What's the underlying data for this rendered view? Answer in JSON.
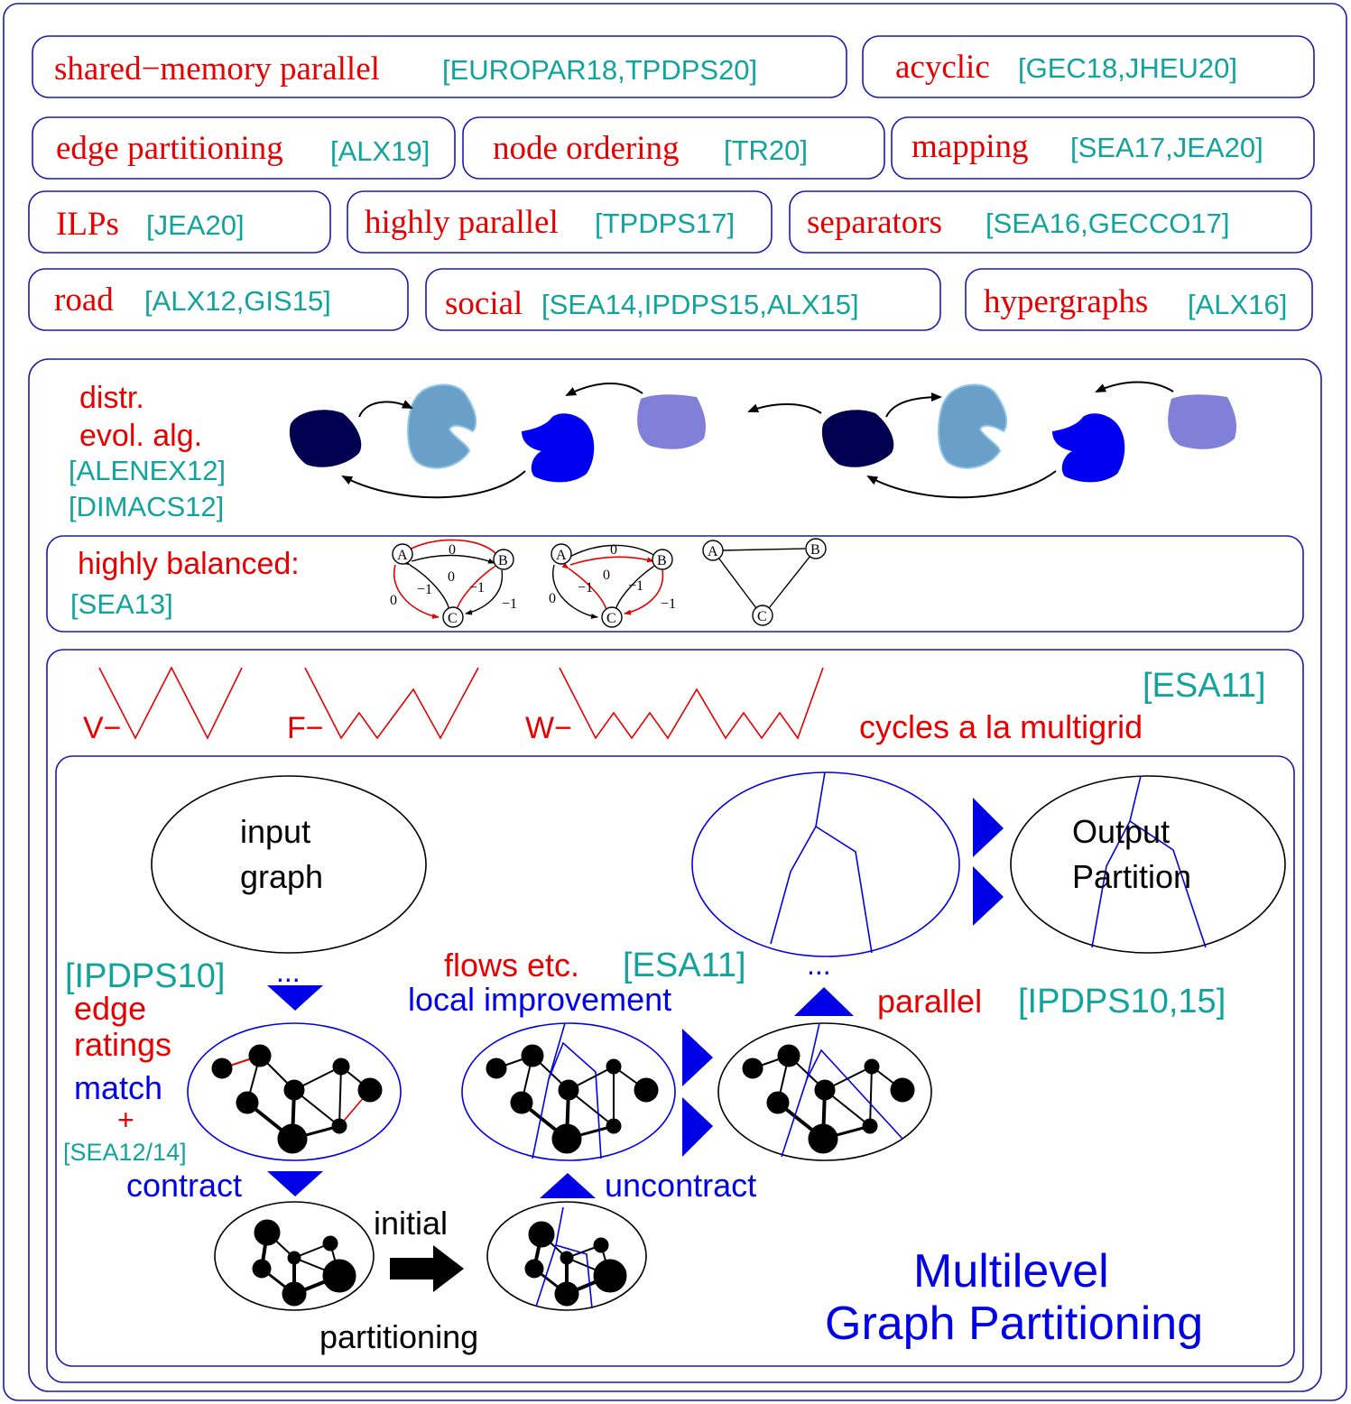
{
  "topics": [
    {
      "name": "shared−memory parallel",
      "refs": "[EUROPAR18,TPDPS20]"
    },
    {
      "name": "acyclic",
      "refs": "[GEC18,JHEU20]"
    },
    {
      "name": "edge partitioning",
      "refs": "[ALX19]"
    },
    {
      "name": "node ordering",
      "refs": "[TR20]"
    },
    {
      "name": "mapping",
      "refs": "[SEA17,JEA20]"
    },
    {
      "name": "ILPs",
      "refs": "[JEA20]"
    },
    {
      "name": "highly parallel",
      "refs": "[TPDPS17]"
    },
    {
      "name": "separators",
      "refs": "[SEA16,GECCO17]"
    },
    {
      "name": "road",
      "refs": "[ALX12,GIS15]"
    },
    {
      "name": "social",
      "refs": "[SEA14,IPDPS15,ALX15]"
    },
    {
      "name": "hypergraphs",
      "refs": "[ALX16]"
    }
  ],
  "evol": {
    "label1": "distr.",
    "label2": "evol. alg.",
    "ref1": "[ALENEX12]",
    "ref2": "[DIMACS12]",
    "colors": [
      "#000050",
      "#6a9fc8",
      "#0000f0",
      "#8080d8"
    ]
  },
  "balanced": {
    "label": "highly balanced:",
    "ref": "[SEA13]",
    "nodes": [
      "A",
      "B",
      "C"
    ],
    "weights": {
      "zero": "0",
      "neg": "−1"
    }
  },
  "cycles": {
    "ref": "[ESA11]",
    "v": "V−",
    "f": "F−",
    "w": "W−",
    "caption": "cycles a la multigrid"
  },
  "multilevel": {
    "input1": "input",
    "input2": "graph",
    "output1": "Output",
    "output2": "Partition",
    "ref_ipdps10": "[IPDPS10]",
    "dots1": "...",
    "dots2": "...",
    "edge1": "edge",
    "edge2": "ratings",
    "match": "match",
    "plus": "+",
    "ref_sea1214": "[SEA12/14]",
    "contract": "contract",
    "flows": "flows etc.",
    "ref_esa11": "[ESA11]",
    "local": "local improvement",
    "parallel": "parallel",
    "ref_ipdps1015": "[IPDPS10,15]",
    "uncontract": "uncontract",
    "initial": "initial",
    "partitioning": "partitioning",
    "title1": "Multilevel",
    "title2": "Graph Partitioning"
  }
}
